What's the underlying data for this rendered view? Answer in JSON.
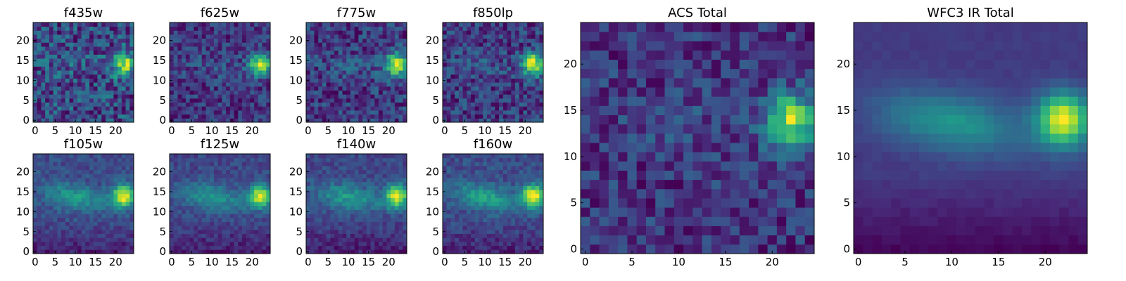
{
  "chart_data": [
    {
      "type": "heatmap",
      "title": "f435w",
      "x_ticks": [
        "0",
        "5",
        "10",
        "15",
        "20"
      ],
      "y_ticks": [
        "0",
        "5",
        "10",
        "15",
        "20"
      ],
      "grid_size": 25,
      "xlim": [
        0,
        25
      ],
      "ylim": [
        0,
        25
      ],
      "colormap": "viridis",
      "blob_center": [
        22,
        14
      ],
      "noise": "high"
    },
    {
      "type": "heatmap",
      "title": "f625w",
      "x_ticks": [
        "0",
        "5",
        "10",
        "15",
        "20"
      ],
      "y_ticks": [
        "0",
        "5",
        "10",
        "15",
        "20"
      ],
      "grid_size": 25,
      "xlim": [
        0,
        25
      ],
      "ylim": [
        0,
        25
      ],
      "colormap": "viridis",
      "blob_center": [
        22,
        14
      ],
      "noise": "medium"
    },
    {
      "type": "heatmap",
      "title": "f775w",
      "x_ticks": [
        "0",
        "5",
        "10",
        "15",
        "20"
      ],
      "y_ticks": [
        "0",
        "5",
        "10",
        "15",
        "20"
      ],
      "grid_size": 25,
      "xlim": [
        0,
        25
      ],
      "ylim": [
        0,
        25
      ],
      "colormap": "viridis",
      "blob_center": [
        22,
        14
      ],
      "noise": "medium"
    },
    {
      "type": "heatmap",
      "title": "f850lp",
      "x_ticks": [
        "0",
        "5",
        "10",
        "15",
        "20"
      ],
      "y_ticks": [
        "0",
        "5",
        "10",
        "15",
        "20"
      ],
      "grid_size": 25,
      "xlim": [
        0,
        25
      ],
      "ylim": [
        0,
        25
      ],
      "colormap": "viridis",
      "blob_center": [
        22,
        14
      ],
      "noise": "medium"
    },
    {
      "type": "heatmap",
      "title": "f105w",
      "x_ticks": [
        "0",
        "5",
        "10",
        "15",
        "20"
      ],
      "y_ticks": [
        "0",
        "5",
        "10",
        "15",
        "20"
      ],
      "grid_size": 25,
      "xlim": [
        0,
        25
      ],
      "ylim": [
        0,
        25
      ],
      "colormap": "viridis",
      "blob_center": [
        22,
        14
      ],
      "noise": "low"
    },
    {
      "type": "heatmap",
      "title": "f125w",
      "x_ticks": [
        "0",
        "5",
        "10",
        "15",
        "20"
      ],
      "y_ticks": [
        "0",
        "5",
        "10",
        "15",
        "20"
      ],
      "grid_size": 25,
      "xlim": [
        0,
        25
      ],
      "ylim": [
        0,
        25
      ],
      "colormap": "viridis",
      "blob_center": [
        22,
        14
      ],
      "noise": "low"
    },
    {
      "type": "heatmap",
      "title": "f140w",
      "x_ticks": [
        "0",
        "5",
        "10",
        "15",
        "20"
      ],
      "y_ticks": [
        "0",
        "5",
        "10",
        "15",
        "20"
      ],
      "grid_size": 25,
      "xlim": [
        0,
        25
      ],
      "ylim": [
        0,
        25
      ],
      "colormap": "viridis",
      "blob_center": [
        22,
        14
      ],
      "noise": "low"
    },
    {
      "type": "heatmap",
      "title": "f160w",
      "x_ticks": [
        "0",
        "5",
        "10",
        "15",
        "20"
      ],
      "y_ticks": [
        "0",
        "5",
        "10",
        "15",
        "20"
      ],
      "grid_size": 25,
      "xlim": [
        0,
        25
      ],
      "ylim": [
        0,
        25
      ],
      "colormap": "viridis",
      "blob_center": [
        22,
        14
      ],
      "noise": "low"
    },
    {
      "type": "heatmap",
      "title": "ACS Total",
      "x_ticks": [
        "0",
        "5",
        "10",
        "15",
        "20"
      ],
      "y_ticks": [
        "0",
        "5",
        "10",
        "15",
        "20"
      ],
      "grid_size": 25,
      "xlim": [
        0,
        25
      ],
      "ylim": [
        0,
        25
      ],
      "colormap": "viridis",
      "blob_center": [
        22,
        14
      ],
      "noise": "medium"
    },
    {
      "type": "heatmap",
      "title": "WFC3 IR Total",
      "x_ticks": [
        "0",
        "5",
        "10",
        "15",
        "20"
      ],
      "y_ticks": [
        "0",
        "5",
        "10",
        "15",
        "20"
      ],
      "grid_size": 25,
      "xlim": [
        0,
        25
      ],
      "ylim": [
        0,
        25
      ],
      "colormap": "viridis",
      "blob_center": [
        22,
        14
      ],
      "noise": "smooth"
    }
  ]
}
